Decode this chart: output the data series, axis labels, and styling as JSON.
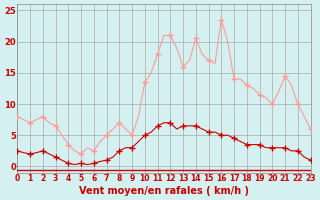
{
  "title": "",
  "xlabel": "Vent moyen/en rafales ( km/h )",
  "ylabel": "",
  "bg_color": "#d4f0f0",
  "grid_color": "#aaaaaa",
  "xlim": [
    0,
    23
  ],
  "ylim": [
    -1,
    26
  ],
  "yticks": [
    0,
    5,
    10,
    15,
    20,
    25
  ],
  "xticks": [
    0,
    1,
    2,
    3,
    4,
    5,
    6,
    7,
    8,
    9,
    10,
    11,
    12,
    13,
    14,
    15,
    16,
    17,
    18,
    19,
    20,
    21,
    22,
    23
  ],
  "avg_color": "#cc0000",
  "gust_color": "#ff9999",
  "marker_color_avg": "#cc0000",
  "marker_color_gust": "#ff9999",
  "hours": [
    0,
    1,
    2,
    3,
    4,
    5,
    6,
    7,
    8,
    9,
    10,
    11,
    12,
    13,
    14,
    15,
    16,
    17,
    18,
    19,
    20,
    21,
    22,
    23
  ],
  "avg_wind": [
    2.5,
    2.0,
    2.5,
    1.5,
    0.5,
    0.5,
    0.5,
    1.0,
    2.5,
    3.0,
    5.0,
    6.5,
    7.0,
    6.5,
    6.5,
    5.5,
    5.0,
    4.5,
    3.5,
    3.5,
    3.0,
    3.0,
    2.5,
    1.0
  ],
  "gust_wind": [
    8.0,
    7.0,
    8.0,
    6.5,
    3.5,
    2.0,
    2.5,
    5.0,
    7.0,
    5.0,
    13.5,
    18.0,
    21.0,
    16.0,
    20.5,
    17.0,
    23.5,
    14.0,
    13.0,
    11.5,
    10.0,
    14.5,
    10.0,
    6.0
  ],
  "avg_detailed_x": [
    0,
    0.5,
    1,
    1.5,
    2,
    2.5,
    3,
    3.5,
    4,
    4.5,
    5,
    5.5,
    6,
    6.5,
    7,
    7.5,
    8,
    8.5,
    9,
    9.5,
    10,
    10.5,
    11,
    11.5,
    12,
    12.5,
    13,
    13.5,
    14,
    14.5,
    15,
    15.5,
    16,
    16.5,
    17,
    17.5,
    18,
    18.5,
    19,
    19.5,
    20,
    20.5,
    21,
    21.5,
    22,
    22.5,
    23
  ],
  "avg_detailed_y": [
    2.5,
    2.2,
    2.0,
    2.2,
    2.5,
    2.0,
    1.5,
    1.0,
    0.5,
    0.3,
    0.5,
    0.3,
    0.5,
    0.8,
    1.0,
    1.5,
    2.5,
    3.0,
    3.0,
    4.0,
    5.0,
    5.5,
    6.5,
    7.0,
    7.0,
    6.0,
    6.5,
    6.5,
    6.5,
    6.0,
    5.5,
    5.5,
    5.0,
    5.0,
    4.5,
    4.0,
    3.5,
    3.5,
    3.5,
    3.0,
    3.0,
    3.0,
    3.0,
    2.5,
    2.5,
    1.5,
    1.0
  ],
  "gust_detailed_x": [
    0,
    0.5,
    1,
    1.5,
    2,
    2.5,
    3,
    3.5,
    4,
    4.5,
    5,
    5.5,
    6,
    6.5,
    7,
    7.5,
    8,
    8.5,
    9,
    9.5,
    10,
    10.5,
    11,
    11.5,
    12,
    12.5,
    13,
    13.5,
    14,
    14.5,
    15,
    15.5,
    16,
    16.5,
    17,
    17.5,
    18,
    18.5,
    19,
    19.5,
    20,
    20.5,
    21,
    21.5,
    22,
    22.5,
    23
  ],
  "gust_detailed_y": [
    8.0,
    7.5,
    7.0,
    7.5,
    8.0,
    7.0,
    6.5,
    5.0,
    3.5,
    2.5,
    2.0,
    3.0,
    2.5,
    4.0,
    5.0,
    6.0,
    7.0,
    6.0,
    5.0,
    8.0,
    13.5,
    15.0,
    18.0,
    21.0,
    21.0,
    19.0,
    16.0,
    17.0,
    20.5,
    18.0,
    17.0,
    16.5,
    23.5,
    20.0,
    14.0,
    14.0,
    13.0,
    12.5,
    11.5,
    11.0,
    10.0,
    12.0,
    14.5,
    13.0,
    10.0,
    8.0,
    6.0
  ]
}
